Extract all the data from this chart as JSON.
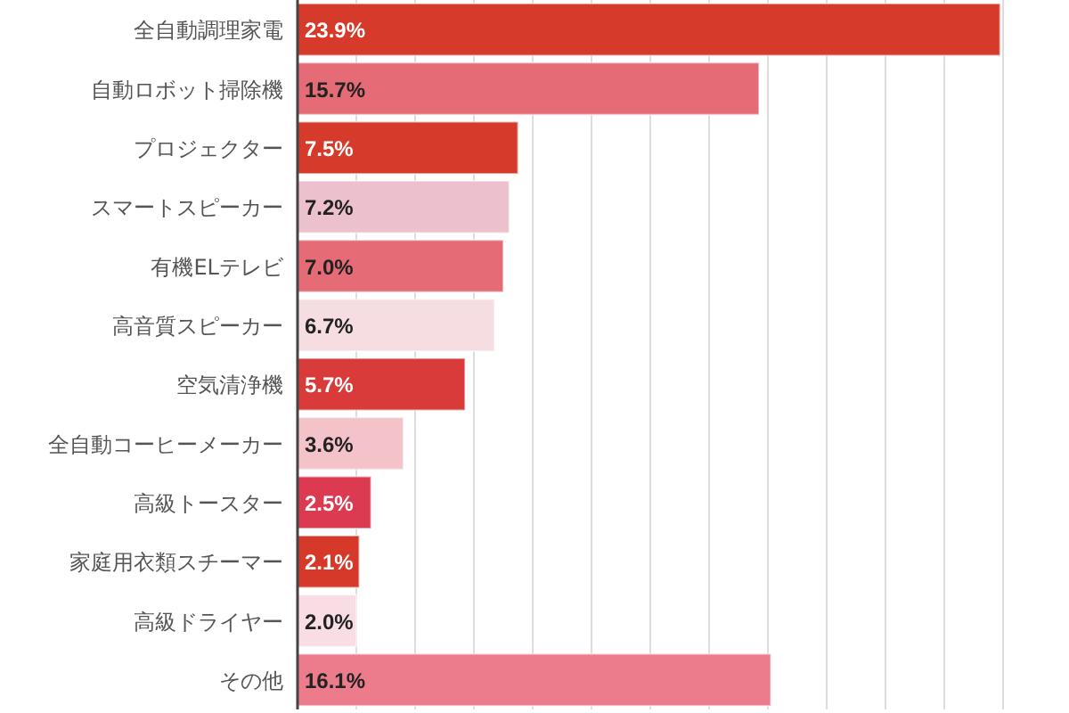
{
  "chart_data": {
    "type": "bar",
    "orientation": "horizontal",
    "categories": [
      "全自動調理家電",
      "自動ロボット掃除機",
      "プロジェクター",
      "スマートスピーカー",
      "有機ELテレビ",
      "高音質スピーカー",
      "空気清浄機",
      "全自動コーヒーメーカー",
      "高級トースター",
      "家庭用衣類スチーマー",
      "高級ドライヤー",
      "その他"
    ],
    "values": [
      23.9,
      15.7,
      7.5,
      7.2,
      7.0,
      6.7,
      5.7,
      3.6,
      2.5,
      2.1,
      2.0,
      16.1
    ],
    "value_labels": [
      "23.9%",
      "15.7%",
      "7.5%",
      "7.2%",
      "7.0%",
      "6.7%",
      "5.7%",
      "3.6%",
      "2.5%",
      "2.1%",
      "2.0%",
      "16.1%"
    ],
    "colors": [
      "#d63a2a",
      "#e56b77",
      "#d63a2a",
      "#ecc0cc",
      "#e56b77",
      "#f6dde2",
      "#d93a3a",
      "#f4c2c9",
      "#dc3a50",
      "#d6392a",
      "#f8dde5",
      "#ec7b8b"
    ],
    "xlim": [
      0,
      24
    ],
    "xticks": [
      {
        "value": 0,
        "label": null
      },
      {
        "value": 2,
        "label": null
      },
      {
        "value": 4,
        "label": null
      },
      {
        "value": 6,
        "label": null
      },
      {
        "value": 8,
        "label": null
      },
      {
        "value": 10,
        "label": null
      },
      {
        "value": 12,
        "label": null
      },
      {
        "value": 14,
        "label": null
      },
      {
        "value": 16,
        "label": null
      },
      {
        "value": 18,
        "label": null
      },
      {
        "value": 20,
        "label": null
      },
      {
        "value": 22,
        "label": null
      },
      {
        "value": 24,
        "label": null
      }
    ],
    "grid": "x",
    "tick_labels": "y"
  }
}
